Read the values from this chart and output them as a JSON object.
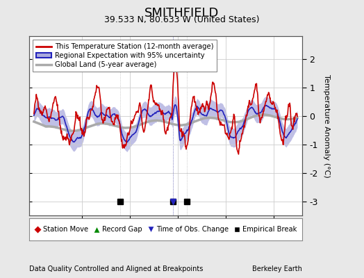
{
  "title": "SMITHFIELD",
  "subtitle": "39.533 N, 80.633 W (United States)",
  "ylabel": "Temperature Anomaly (°C)",
  "xlabel_left": "Data Quality Controlled and Aligned at Breakpoints",
  "xlabel_right": "Berkeley Earth",
  "year_start": 1890,
  "year_end": 1945,
  "ylim": [
    -3.5,
    2.8
  ],
  "yticks": [
    -3,
    -2,
    -1,
    0,
    1,
    2
  ],
  "bg_color": "#e8e8e8",
  "plot_bg_color": "#ffffff",
  "station_color": "#cc0000",
  "regional_color": "#2222bb",
  "regional_uncertainty_color": "#aaaadd",
  "global_color": "#aaaaaa",
  "empirical_breaks": [
    1908,
    1919,
    1922
  ],
  "time_of_obs": [
    1919
  ],
  "station_moves": [],
  "record_gaps": [],
  "legend_line1": "This Temperature Station (12-month average)",
  "legend_line2": "Regional Expectation with 95% uncertainty",
  "legend_line3": "Global Land (5-year average)",
  "bl_label0": "Station Move",
  "bl_label1": "Record Gap",
  "bl_label2": "Time of Obs. Change",
  "bl_label3": "Empirical Break",
  "bl_color0": "#cc0000",
  "bl_color1": "#008800",
  "bl_color2": "#2222bb",
  "bl_color3": "#000000"
}
